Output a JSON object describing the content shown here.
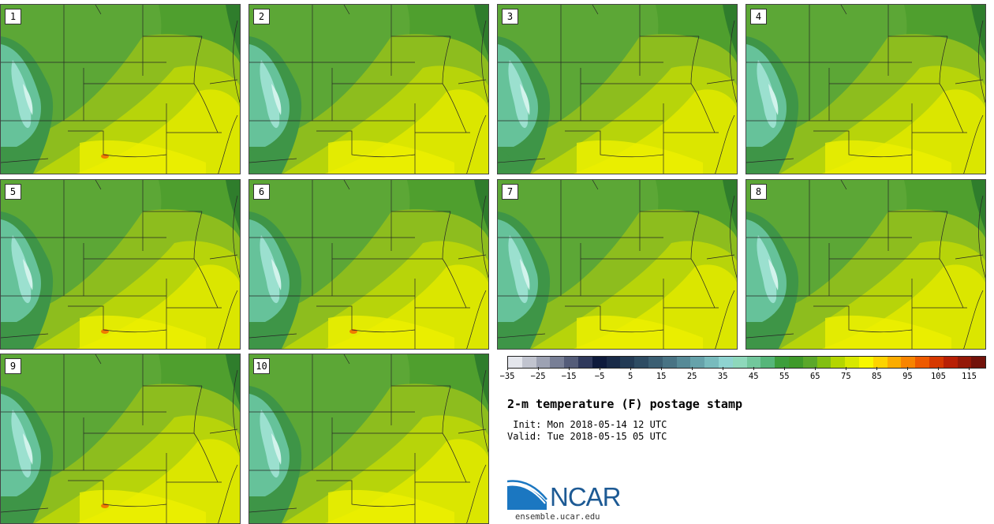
{
  "title": "2-m temperature (F) postage stamp",
  "init_text": " Init: Mon 2018-05-14 12 UTC",
  "valid_text": "Valid: Tue 2018-05-15 05 UTC",
  "members": [
    {
      "label": "1",
      "heat_spots": 1
    },
    {
      "label": "2",
      "heat_spots": 0
    },
    {
      "label": "3",
      "heat_spots": 0
    },
    {
      "label": "4",
      "heat_spots": 0
    },
    {
      "label": "5",
      "heat_spots": 1
    },
    {
      "label": "6",
      "heat_spots": 1
    },
    {
      "label": "7",
      "heat_spots": 0
    },
    {
      "label": "8",
      "heat_spots": 0
    },
    {
      "label": "9",
      "heat_spots": 1
    },
    {
      "label": "10",
      "heat_spots": 0
    }
  ],
  "colorbar": {
    "min": -35,
    "max": 120,
    "step": 5,
    "tick_labels": [
      "-35",
      "-25",
      "-15",
      "-5",
      "5",
      "15",
      "25",
      "35",
      "45",
      "55",
      "65",
      "75",
      "85",
      "95",
      "105",
      "115"
    ],
    "colors": [
      "#e4e6ec",
      "#c1c4cf",
      "#9da2b3",
      "#787f96",
      "#545c79",
      "#2f395c",
      "#0e1a3c",
      "#192a48",
      "#233b55",
      "#2e4c63",
      "#3b5f73",
      "#487384",
      "#568a97",
      "#66a2aa",
      "#78bbbd",
      "#8ed3d0",
      "#8ed8bb",
      "#72c79c",
      "#56b67a",
      "#3d9e3c",
      "#3f9a2a",
      "#5ba82a",
      "#82bf12",
      "#b4d600",
      "#d8e800",
      "#f7f700",
      "#fdd300",
      "#fbac00",
      "#f88400",
      "#ee5a00",
      "#d63800",
      "#b81f05",
      "#941807",
      "#72120a"
    ]
  },
  "logo": {
    "name": "NCAR",
    "url": "ensemble.ucar.edu"
  }
}
